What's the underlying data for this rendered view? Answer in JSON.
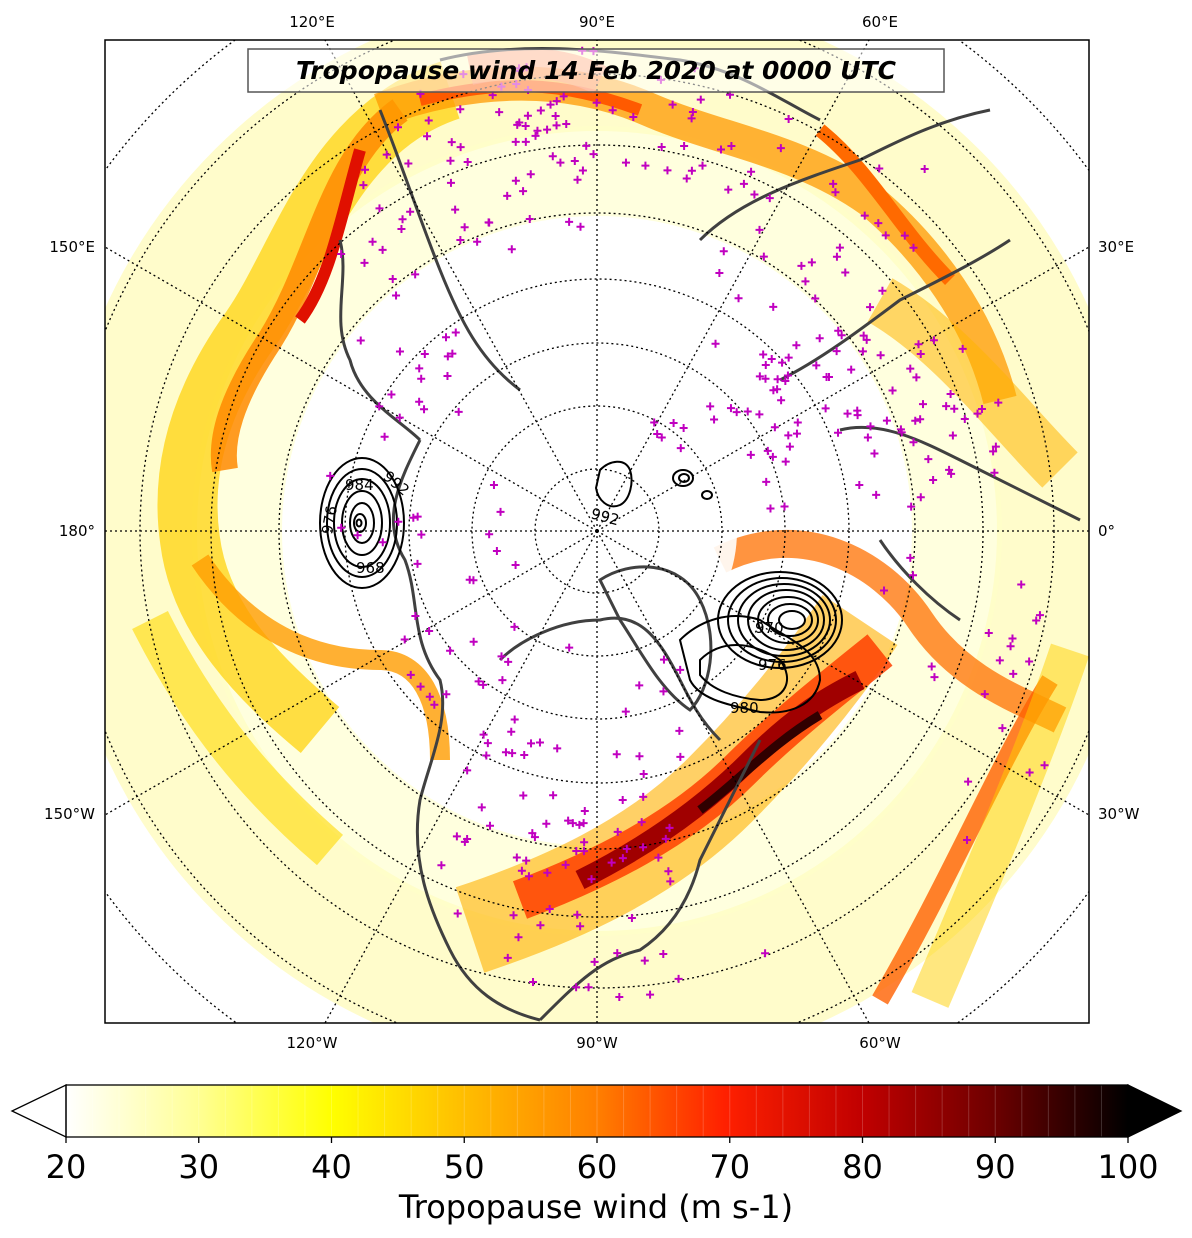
{
  "title": "Tropopause wind 14 Feb 2020 at 0000 UTC",
  "projection": "north-polar-stereographic",
  "longitude_labels": {
    "top": [
      "120°E",
      "90°E",
      "60°E"
    ],
    "bottom": [
      "120°W",
      "90°W",
      "60°W"
    ],
    "left": [
      "150°E",
      "180°",
      "150°W"
    ],
    "right": [
      "30°E",
      "0°",
      "30°W"
    ]
  },
  "colorbar": {
    "label": "Tropopause wind (m s-1)",
    "min": 20,
    "max": 100,
    "tick_labels": [
      "20",
      "30",
      "40",
      "50",
      "60",
      "70",
      "80",
      "90",
      "100"
    ],
    "extend": "both",
    "colormap": "hot_r",
    "colors": {
      "low": "#ffffff",
      "yellow": "#ffff00",
      "orange": "#ff8000",
      "red": "#ff0000",
      "dark_red": "#800000",
      "black": "#000000"
    }
  },
  "pressure_contours": {
    "lows": [
      {
        "location": "Gulf of Alaska / Bering Sea",
        "labels": [
          "992",
          "984",
          "976",
          "968"
        ]
      },
      {
        "location": "Arctic Ocean near North Pole",
        "labels": [
          "992"
        ]
      },
      {
        "location": "Southeast of Greenland",
        "labels": [
          "970",
          "976",
          "980"
        ]
      }
    ],
    "contour_color": "#000000"
  },
  "station_marker_color": "#c000c0",
  "coastline_color": "#404040"
}
